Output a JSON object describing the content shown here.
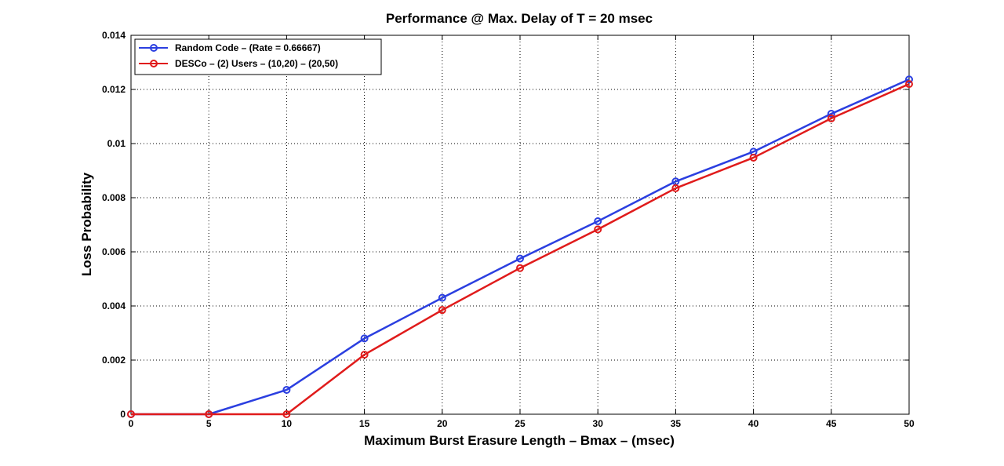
{
  "chart_data": {
    "type": "line",
    "title": "Performance @ Max. Delay of T = 20 msec",
    "xlabel": "Maximum Burst Erasure Length – Bmax – (msec)",
    "ylabel": "Loss Probability",
    "xlim": [
      0,
      50
    ],
    "ylim": [
      0,
      0.014
    ],
    "xticks": [
      0,
      5,
      10,
      15,
      20,
      25,
      30,
      35,
      40,
      45,
      50
    ],
    "yticks": [
      0,
      0.002,
      0.004,
      0.006,
      0.008,
      0.01,
      0.012,
      0.014
    ],
    "ytick_labels": [
      "0",
      "0.002",
      "0.004",
      "0.006",
      "0.008",
      "0.01",
      "0.012",
      "0.014"
    ],
    "grid": true,
    "legend_position": "top-left",
    "x": [
      0,
      5,
      10,
      15,
      20,
      25,
      30,
      35,
      40,
      45,
      50
    ],
    "series": [
      {
        "name": "Random Code – (Rate = 0.66667)",
        "color": "#2b3fe0",
        "values": [
          0,
          0,
          0.0009,
          0.0028,
          0.0043,
          0.00575,
          0.00713,
          0.0086,
          0.0097,
          0.0111,
          0.01237
        ]
      },
      {
        "name": "DESCo – (2) Users – (10,20) – (20,50)",
        "color": "#e01b1b",
        "values": [
          0,
          0,
          0,
          0.0022,
          0.00385,
          0.0054,
          0.00683,
          0.00835,
          0.00948,
          0.01093,
          0.0122
        ]
      }
    ]
  }
}
